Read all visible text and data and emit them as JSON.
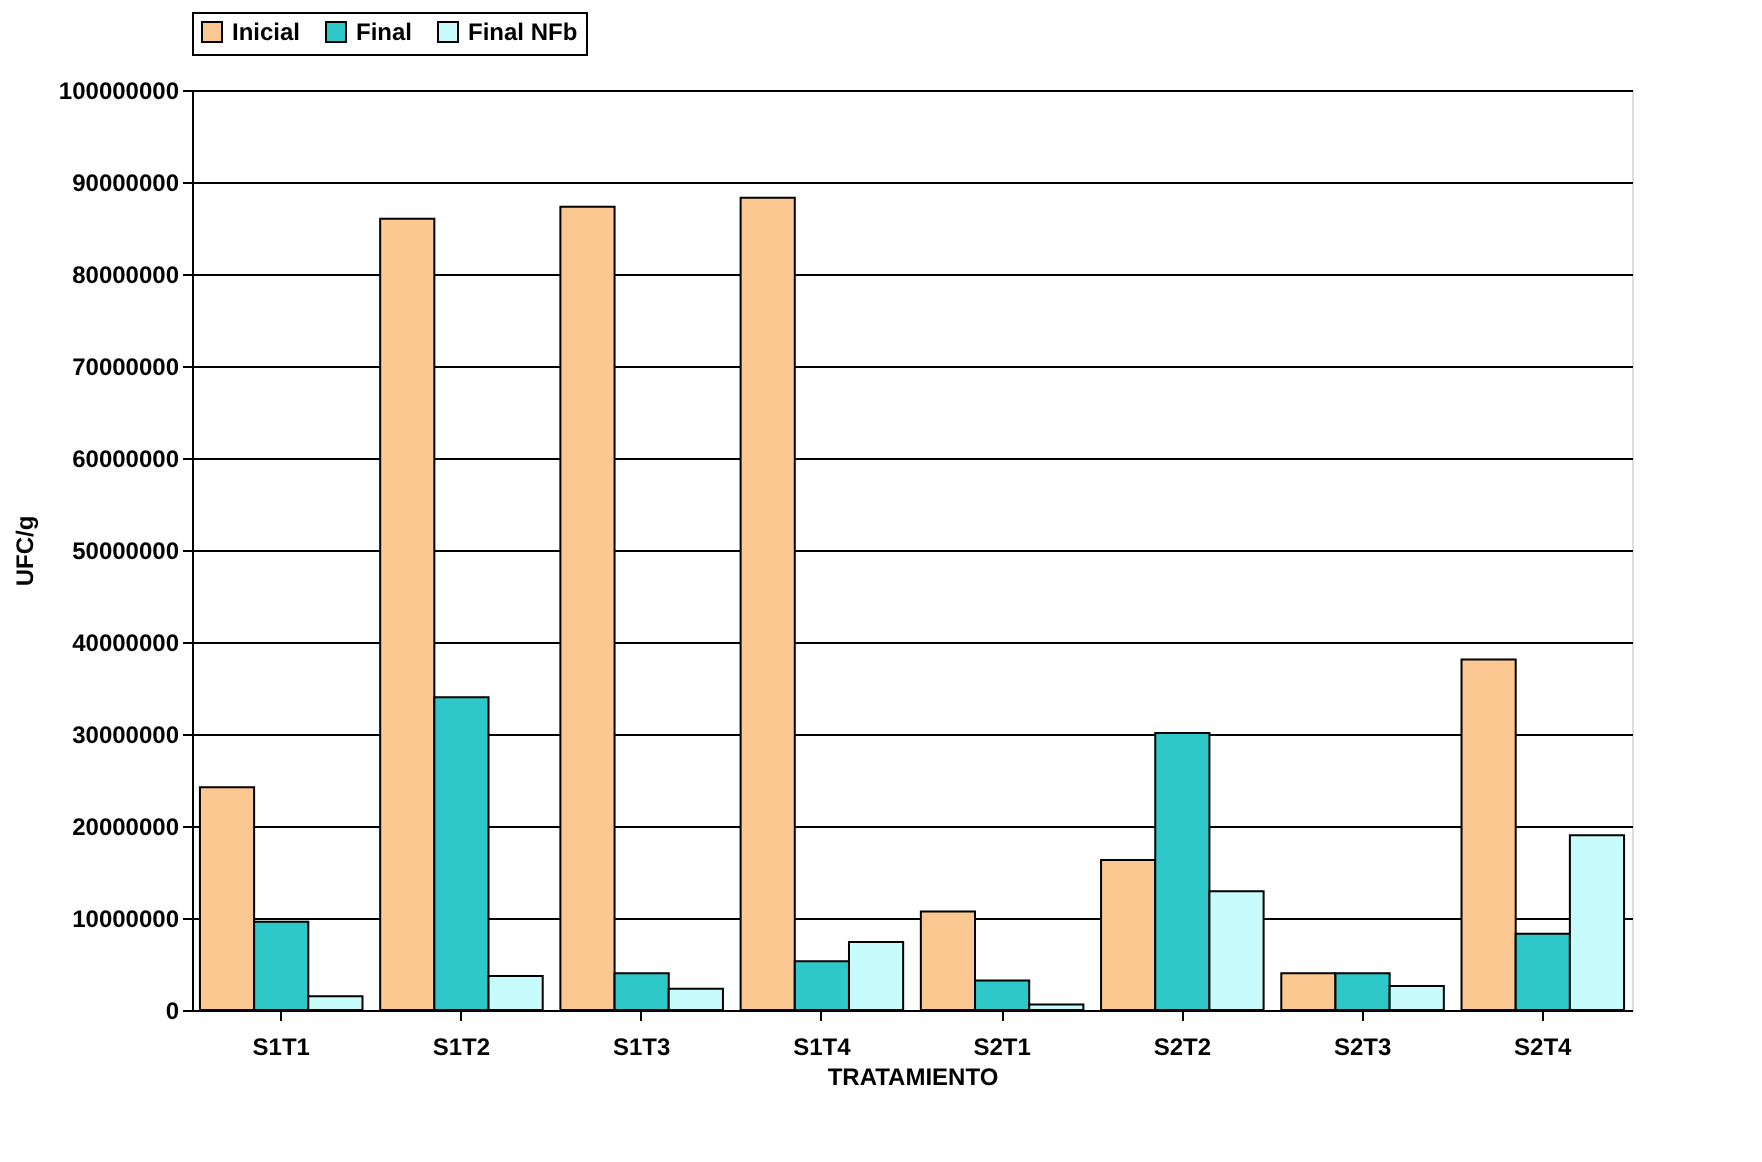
{
  "chart_data": {
    "type": "bar",
    "xlabel": "TRATAMIENTO",
    "ylabel": "UFC/g",
    "categories": [
      "S1T1",
      "S1T2",
      "S1T3",
      "S1T4",
      "S2T1",
      "S2T2",
      "S2T3",
      "S2T4"
    ],
    "series": [
      {
        "name": "Inicial",
        "color": "#fcc891",
        "values": [
          24200000,
          86000000,
          87300000,
          88300000,
          10700000,
          16300000,
          4000000,
          38100000
        ]
      },
      {
        "name": "Final",
        "color": "#2fc8c8",
        "values": [
          9600000,
          34000000,
          4000000,
          5300000,
          3200000,
          30100000,
          4000000,
          8300000
        ]
      },
      {
        "name": "Final NFb",
        "color": "#c8fcfc",
        "values": [
          1500000,
          3700000,
          2300000,
          7400000,
          600000,
          12900000,
          2600000,
          19000000
        ]
      }
    ],
    "ylim": [
      0,
      100000000
    ],
    "yticks": [
      0,
      10000000,
      20000000,
      30000000,
      40000000,
      50000000,
      60000000,
      70000000,
      80000000,
      90000000,
      100000000
    ],
    "grid": "y",
    "legend": "top"
  }
}
